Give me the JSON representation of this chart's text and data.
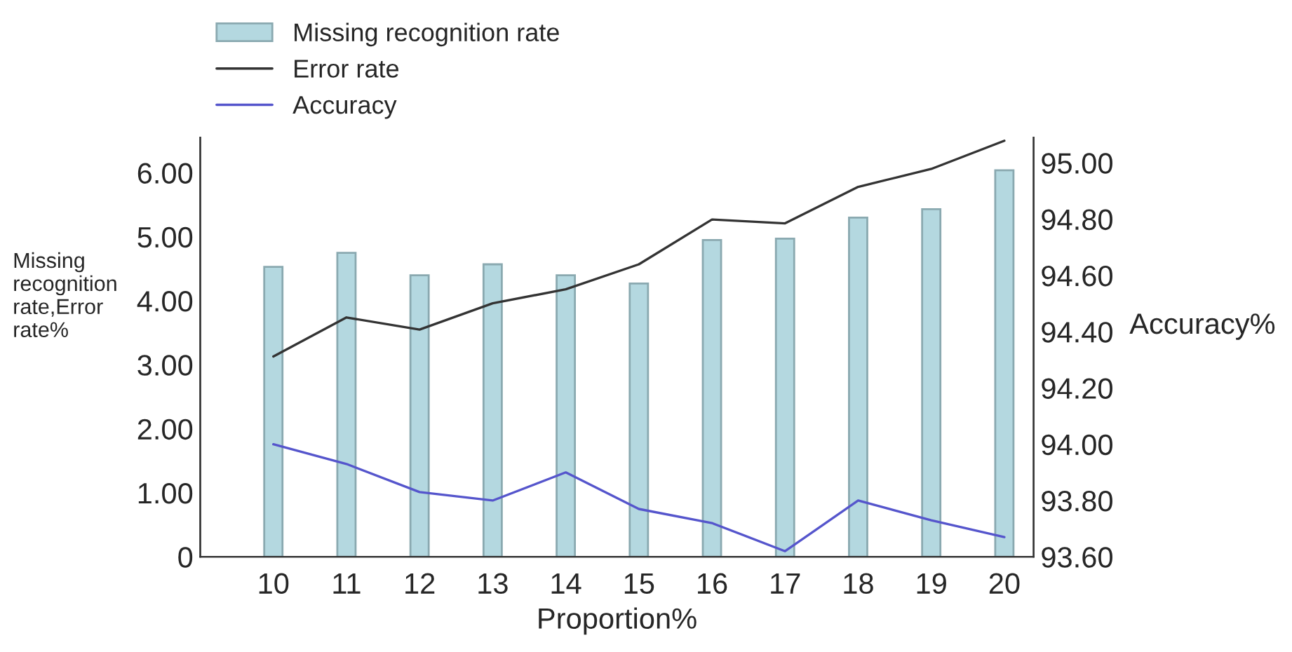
{
  "chart_data": {
    "type": "bar",
    "xlabel": "Proportion%",
    "ylabel": "Missing recognition rate,Error rate%",
    "y2label": "Accuracy%",
    "categories": [
      "10",
      "11",
      "12",
      "13",
      "14",
      "15",
      "16",
      "17",
      "18",
      "19",
      "20"
    ],
    "series": [
      {
        "name": "Missing recognition rate",
        "color": "#b4d8e0",
        "values": [
          4.53,
          4.75,
          4.4,
          4.57,
          4.4,
          4.27,
          4.95,
          4.97,
          5.3,
          5.43,
          6.04
        ]
      },
      {
        "name": "Error rate",
        "type": "line",
        "color": "#333333",
        "values": [
          3.13,
          3.74,
          3.55,
          3.96,
          4.18,
          4.57,
          5.27,
          5.21,
          5.78,
          6.06,
          6.5
        ]
      },
      {
        "name": "Accuracy",
        "type": "line",
        "axis": "y2",
        "color": "#5555cc",
        "values": [
          94.0,
          93.93,
          93.83,
          93.8,
          93.9,
          93.77,
          93.72,
          93.62,
          93.8,
          93.73,
          93.67
        ]
      }
    ],
    "ylim": [
      0,
      6.55
    ],
    "yticks": [
      {
        "value": 0,
        "label": "0"
      },
      {
        "value": 1,
        "label": "1.00"
      },
      {
        "value": 2,
        "label": "2.00"
      },
      {
        "value": 3,
        "label": "3.00"
      },
      {
        "value": 4,
        "label": "4.00"
      },
      {
        "value": 5,
        "label": "5.00"
      },
      {
        "value": 6,
        "label": "6.00"
      }
    ],
    "y2lim": [
      93.6,
      95.09
    ],
    "y2ticks": [
      {
        "value": 93.6,
        "label": "93.60"
      },
      {
        "value": 93.8,
        "label": "93.80"
      },
      {
        "value": 94.0,
        "label": "94.00"
      },
      {
        "value": 94.2,
        "label": "94.20"
      },
      {
        "value": 94.4,
        "label": "94.40"
      },
      {
        "value": 94.6,
        "label": "94.60"
      },
      {
        "value": 94.8,
        "label": "94.80"
      },
      {
        "value": 95.0,
        "label": "95.00"
      }
    ],
    "grid": false,
    "legend": "top left"
  }
}
